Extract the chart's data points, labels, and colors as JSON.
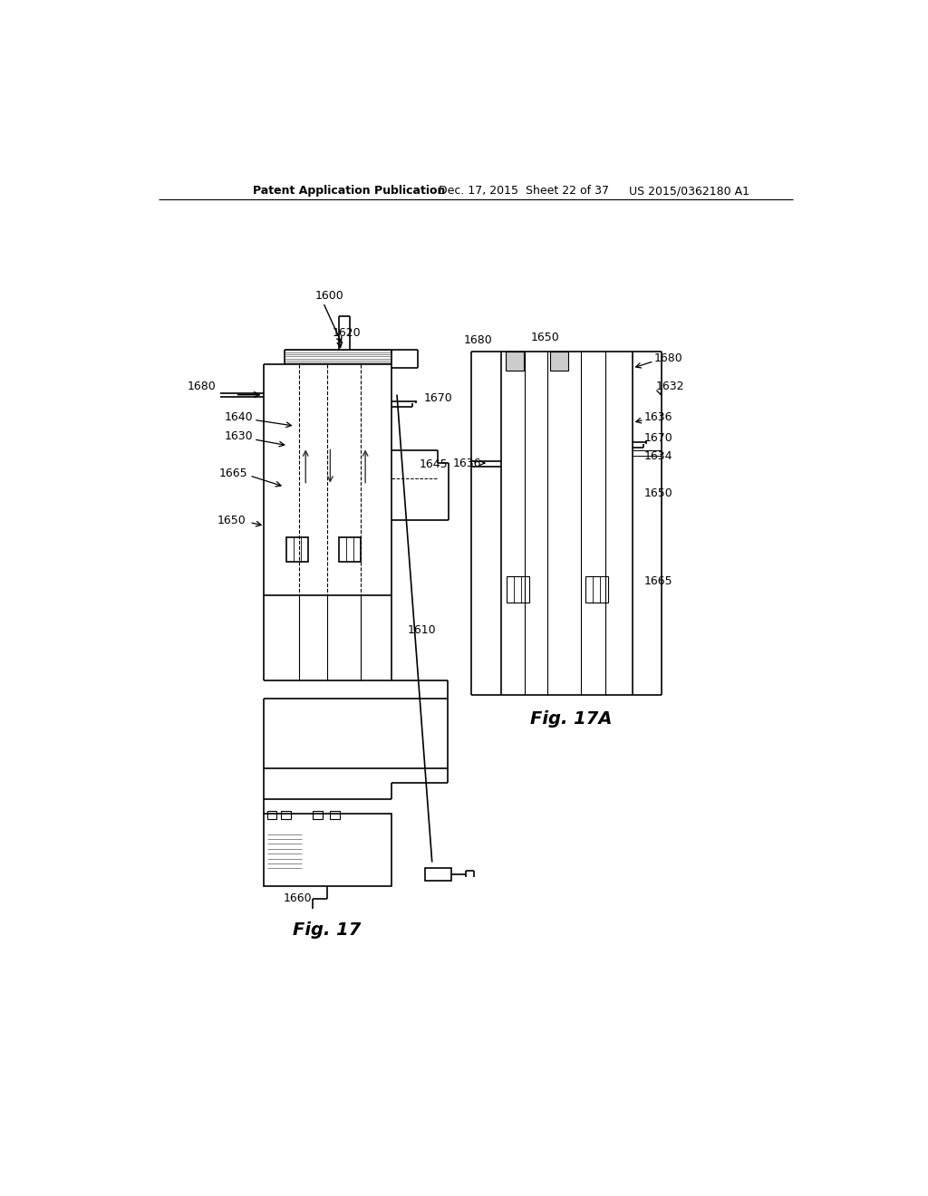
{
  "background_color": "#ffffff",
  "header_left": "Patent Application Publication",
  "header_center": "Dec. 17, 2015  Sheet 22 of 37",
  "header_right": "US 2015/0362180 A1",
  "fig17_caption": "Fig. 17",
  "fig17a_caption": "Fig. 17A",
  "label_1600": "1600",
  "label_1610": "1610",
  "label_1620": "1620",
  "label_1630": "1630",
  "label_1632": "1632",
  "label_1634": "1634",
  "label_1636": "1636",
  "label_1640": "1640",
  "label_1645": "1645",
  "label_1650": "1650",
  "label_1660": "1660",
  "label_1665": "1665",
  "label_1670": "1670",
  "label_1680": "1680",
  "line_color": "#000000",
  "line_width": 1.2
}
